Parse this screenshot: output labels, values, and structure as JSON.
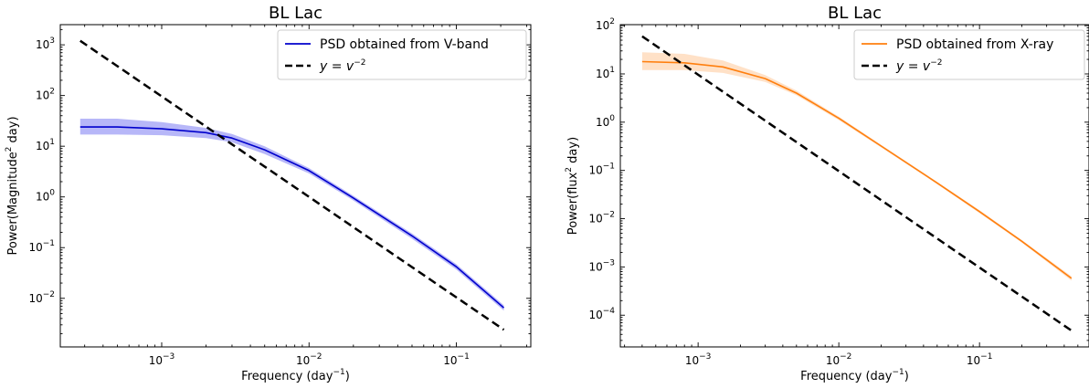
{
  "chart_data": [
    {
      "type": "line",
      "title": "BL Lac",
      "xlabel": "Frequency",
      "xlabel_unit": "day",
      "xlabel_unit_exp": "−1",
      "ylabel_prefix": "Power(Magnitude",
      "ylabel_exp": "2",
      "ylabel_suffix": " day)",
      "xscale": "log",
      "yscale": "log",
      "xlim": [
        0.000205,
        0.32
      ],
      "ylim": [
        0.0011,
        2500
      ],
      "xticks": [
        {
          "v": 0.001,
          "base": "10",
          "exp": "−3"
        },
        {
          "v": 0.01,
          "base": "10",
          "exp": "−2"
        },
        {
          "v": 0.1,
          "base": "10",
          "exp": "−1"
        }
      ],
      "yticks": [
        {
          "v": 0.01,
          "base": "10",
          "exp": "−2"
        },
        {
          "v": 0.1,
          "base": "10",
          "exp": "−1"
        },
        {
          "v": 1,
          "base": "10",
          "exp": "0"
        },
        {
          "v": 10,
          "base": "10",
          "exp": "1"
        },
        {
          "v": 100,
          "base": "10",
          "exp": "2"
        },
        {
          "v": 1000,
          "base": "10",
          "exp": "3"
        }
      ],
      "grid": false,
      "legend_position": "top-right",
      "series": [
        {
          "name": "PSD obtained from V-band",
          "color": "#0000cc",
          "band_color": "#7b7bf2",
          "x": [
            0.00028,
            0.0005,
            0.001,
            0.002,
            0.003,
            0.005,
            0.01,
            0.02,
            0.05,
            0.1,
            0.21
          ],
          "y": [
            24,
            24,
            22,
            18.5,
            14.5,
            8.5,
            3.3,
            0.95,
            0.17,
            0.042,
            0.0065
          ],
          "upper": [
            35,
            35,
            30,
            23,
            17.5,
            10,
            3.7,
            1.05,
            0.19,
            0.047,
            0.0073
          ],
          "lower": [
            17,
            17,
            16.5,
            14.5,
            12,
            7,
            2.9,
            0.85,
            0.15,
            0.037,
            0.0057
          ]
        },
        {
          "name": "y = v^-2",
          "legend_label": "y = v",
          "legend_exp": "−2",
          "color": "#000000",
          "style": "dashed",
          "x": [
            0.00028,
            0.21
          ],
          "y": [
            1200,
            0.0024
          ]
        }
      ]
    },
    {
      "type": "line",
      "title": "BL Lac",
      "xlabel": "Frequency",
      "xlabel_unit": "day",
      "xlabel_unit_exp": "−1",
      "ylabel_prefix": "Power(flux",
      "ylabel_exp": "2",
      "ylabel_suffix": " day)",
      "xscale": "log",
      "yscale": "log",
      "xlim": [
        0.00028,
        0.6
      ],
      "ylim": [
        2.2e-05,
        105
      ],
      "xticks": [
        {
          "v": 0.001,
          "base": "10",
          "exp": "−3"
        },
        {
          "v": 0.01,
          "base": "10",
          "exp": "−2"
        },
        {
          "v": 0.1,
          "base": "10",
          "exp": "−1"
        }
      ],
      "yticks": [
        {
          "v": 0.0001,
          "base": "10",
          "exp": "−4"
        },
        {
          "v": 0.001,
          "base": "10",
          "exp": "−3"
        },
        {
          "v": 0.01,
          "base": "10",
          "exp": "−2"
        },
        {
          "v": 0.1,
          "base": "10",
          "exp": "−1"
        },
        {
          "v": 1,
          "base": "10",
          "exp": "0"
        },
        {
          "v": 10,
          "base": "10",
          "exp": "1"
        },
        {
          "v": 100,
          "base": "10",
          "exp": "2"
        }
      ],
      "grid": false,
      "legend_position": "top-right",
      "series": [
        {
          "name": "PSD obtained from X-ray",
          "color": "#ff7f0e",
          "band_color": "#ffc999",
          "x": [
            0.0004,
            0.0008,
            0.0015,
            0.003,
            0.005,
            0.01,
            0.02,
            0.05,
            0.1,
            0.2,
            0.45
          ],
          "y": [
            18,
            17,
            14,
            8,
            4,
            1.2,
            0.32,
            0.055,
            0.014,
            0.0034,
            0.00058
          ],
          "upper": [
            28,
            26,
            19,
            9.5,
            4.5,
            1.3,
            0.34,
            0.058,
            0.015,
            0.0036,
            0.00064
          ],
          "lower": [
            12,
            12,
            10.5,
            6.8,
            3.6,
            1.1,
            0.3,
            0.052,
            0.013,
            0.0032,
            0.00052
          ]
        },
        {
          "name": "y = v^-2",
          "legend_label": "y = v",
          "legend_exp": "−2",
          "color": "#000000",
          "style": "dashed",
          "x": [
            0.0004,
            0.45
          ],
          "y": [
            60,
            4.8e-05
          ]
        }
      ]
    }
  ]
}
